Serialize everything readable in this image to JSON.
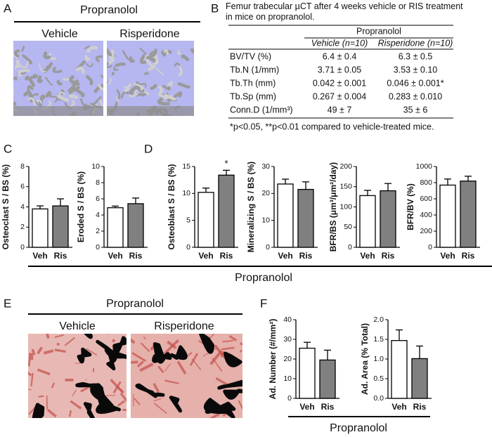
{
  "panel_labels": [
    "A",
    "B",
    "C",
    "D",
    "E",
    "F"
  ],
  "panel_a": {
    "header": "Propranolol",
    "groups": [
      "Vehicle",
      "Risperidone"
    ]
  },
  "panel_b": {
    "title": "Femur trabecular µCT after 4 weeks vehicle or RIS treatment in mice on propranolol.",
    "group_header": "Propranolol",
    "columns": [
      "Vehicle (n=10)",
      "Risperidone (n=10)"
    ],
    "rows": [
      [
        "BV/TV (%)",
        "6.4 ± 0.4",
        "6.3 ± 0.5"
      ],
      [
        "Tb.N (1/mm)",
        "3.71 ± 0.05",
        "3.53 ± 0.10"
      ],
      [
        "Tb.Th (mm)",
        "0.042 ± 0.001",
        "0.046 ± 0.001*"
      ],
      [
        "Tb.Sp (mm)",
        "0.267 ± 0.004",
        "0.283 ± 0.010"
      ],
      [
        "Conn.D (1/mm³)",
        "49 ± 7",
        "35 ± 6"
      ]
    ],
    "footnote": "*p<0.05, **p<0.01 compared to vehicle-treated mice."
  },
  "panel_cd_footer": "Propranolol",
  "panel_e": {
    "header": "Propranolol",
    "groups": [
      "Vehicle",
      "Risperidone"
    ]
  },
  "panel_f_footer": "Propranolol",
  "chart_data": [
    {
      "type": "bar",
      "ylabel": "Osteoclast S / BS (%)",
      "categories": [
        "Veh",
        "Ris"
      ],
      "values": [
        3.8,
        4.1
      ],
      "errors": [
        0.3,
        0.7
      ],
      "colors": [
        "#ffffff",
        "#808080"
      ],
      "ylim": [
        0,
        8
      ],
      "yticks": [
        0,
        2,
        4,
        6,
        8
      ]
    },
    {
      "type": "bar",
      "ylabel": "Eroded S / BS (%)",
      "categories": [
        "Veh",
        "Ris"
      ],
      "values": [
        4.9,
        5.4
      ],
      "errors": [
        0.2,
        0.7
      ],
      "colors": [
        "#ffffff",
        "#808080"
      ],
      "ylim": [
        0,
        10
      ],
      "yticks": [
        0,
        2,
        4,
        6,
        8,
        10
      ]
    },
    {
      "type": "bar",
      "ylabel": "Osteoblast S / BS (%)",
      "categories": [
        "Veh",
        "Ris"
      ],
      "values": [
        10.2,
        13.4
      ],
      "errors": [
        0.8,
        0.9
      ],
      "colors": [
        "#ffffff",
        "#808080"
      ],
      "ylim": [
        0,
        15
      ],
      "yticks": [
        0,
        5,
        10,
        15
      ],
      "annotations": [
        {
          "text": "*",
          "x": "Ris"
        }
      ]
    },
    {
      "type": "bar",
      "ylabel": "Mineralizing S / BS (%)",
      "categories": [
        "Veh",
        "Ris"
      ],
      "values": [
        23.5,
        21.5
      ],
      "errors": [
        1.8,
        2.8
      ],
      "colors": [
        "#ffffff",
        "#808080"
      ],
      "ylim": [
        0,
        30
      ],
      "yticks": [
        0,
        10,
        20,
        30
      ]
    },
    {
      "type": "bar",
      "ylabel": "BFR/BS (μm³/μm²/day)",
      "categories": [
        "Veh",
        "Ris"
      ],
      "values": [
        128,
        140
      ],
      "errors": [
        13,
        18
      ],
      "colors": [
        "#ffffff",
        "#808080"
      ],
      "ylim": [
        0,
        200
      ],
      "yticks": [
        0,
        50,
        100,
        150,
        200
      ]
    },
    {
      "type": "bar",
      "ylabel": "BFR/BV (%)",
      "categories": [
        "Veh",
        "Ris"
      ],
      "values": [
        770,
        820
      ],
      "errors": [
        75,
        60
      ],
      "colors": [
        "#ffffff",
        "#808080"
      ],
      "ylim": [
        0,
        1000
      ],
      "yticks": [
        0,
        200,
        400,
        600,
        800,
        1000
      ]
    },
    {
      "type": "bar",
      "ylabel": "Ad. Number (#/mm²)",
      "categories": [
        "Veh",
        "Ris"
      ],
      "values": [
        25.5,
        19.5
      ],
      "errors": [
        3,
        5
      ],
      "colors": [
        "#ffffff",
        "#808080"
      ],
      "ylim": [
        0,
        40
      ],
      "yticks": [
        0,
        10,
        20,
        30,
        40
      ]
    },
    {
      "type": "bar",
      "ylabel": "Ad. Area (% Total)",
      "categories": [
        "Veh",
        "Ris"
      ],
      "values": [
        1.47,
        1.01
      ],
      "errors": [
        0.27,
        0.32
      ],
      "colors": [
        "#ffffff",
        "#808080"
      ],
      "ylim": [
        0,
        2
      ],
      "yticks": [
        {
          "value": 0,
          "label": "0.0"
        },
        0.5,
        {
          "value": 1,
          "label": "1.0"
        },
        1.5,
        {
          "value": 2,
          "label": "2.0"
        }
      ]
    }
  ]
}
